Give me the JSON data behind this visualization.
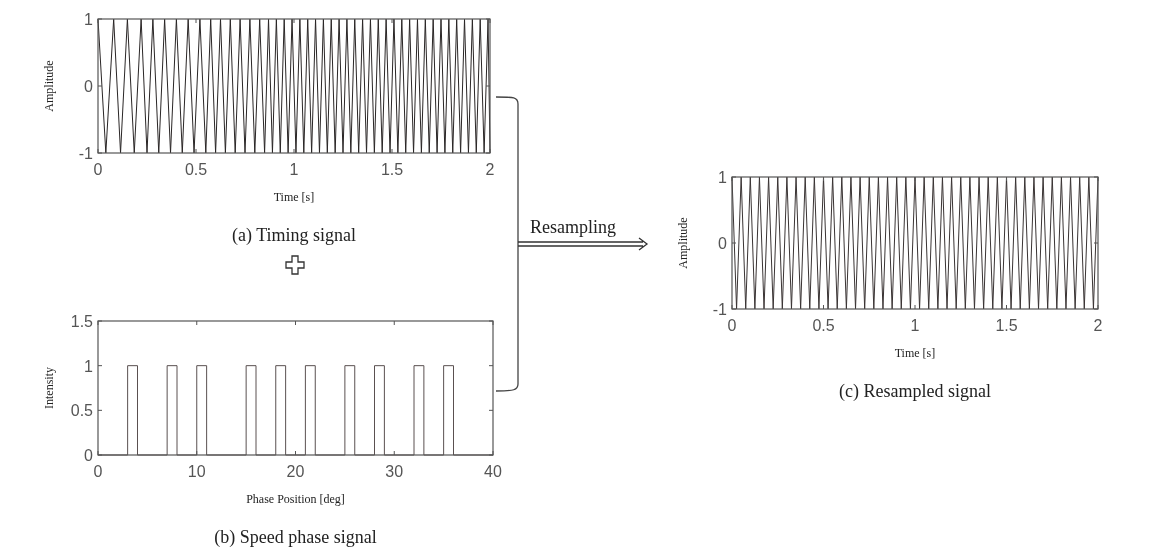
{
  "chart_data": [
    {
      "type": "line",
      "title": "(a) Timing signal",
      "xlabel": "Time [s]",
      "ylabel": "Amplitude",
      "xlim": [
        0,
        2
      ],
      "ylim": [
        -1,
        1
      ],
      "xticks": [
        0,
        0.5,
        1,
        1.5,
        2
      ],
      "yticks": [
        -1,
        0,
        1
      ],
      "grid": false,
      "series": [
        {
          "color": "#2a2626",
          "x": [
            0,
            0.04,
            0.08,
            0.115,
            0.15,
            0.185,
            0.22,
            0.25,
            0.28,
            0.31,
            0.34,
            0.37,
            0.4,
            0.43,
            0.46,
            0.49,
            0.52,
            0.55,
            0.575,
            0.6,
            0.625,
            0.65,
            0.675,
            0.7,
            0.725,
            0.75,
            0.775,
            0.8,
            0.825,
            0.85,
            0.87,
            0.89,
            0.91,
            0.93,
            0.95,
            0.97,
            0.99,
            1.01,
            1.03,
            1.05,
            1.07,
            1.09,
            1.11,
            1.13,
            1.15,
            1.17,
            1.19,
            1.21,
            1.23,
            1.25,
            1.27,
            1.29,
            1.31,
            1.33,
            1.35,
            1.37,
            1.39,
            1.41,
            1.43,
            1.45,
            1.47,
            1.49,
            1.51,
            1.53,
            1.55,
            1.57,
            1.59,
            1.61,
            1.63,
            1.65,
            1.67,
            1.69,
            1.71,
            1.73,
            1.75,
            1.77,
            1.79,
            1.81,
            1.83,
            1.85,
            1.87,
            1.89,
            1.91,
            1.93,
            1.95,
            1.97,
            1.99,
            2
          ],
          "values": [
            1,
            -1,
            1,
            -1,
            1,
            -1,
            1,
            -1,
            1,
            -1,
            1,
            -1,
            1,
            -1,
            1,
            -1,
            1,
            -1,
            1,
            -1,
            1,
            -1,
            1,
            -1,
            1,
            -1,
            1,
            -1,
            1,
            -1,
            1,
            -1,
            1,
            -1,
            1,
            -1,
            1,
            -1,
            1,
            -1,
            1,
            -1,
            1,
            -1,
            1,
            -1,
            1,
            -1,
            1,
            -1,
            1,
            -1,
            1,
            -1,
            1,
            -1,
            1,
            -1,
            1,
            -1,
            1,
            -1,
            1,
            -1,
            1,
            -1,
            1,
            -1,
            1,
            -1,
            1,
            -1,
            1,
            -1,
            1,
            -1,
            1,
            -1,
            1,
            -1,
            1,
            -1,
            1,
            -1,
            1,
            -1,
            1,
            -1
          ]
        }
      ]
    },
    {
      "type": "line",
      "title": "(b) Speed phase signal",
      "xlabel": "Phase Position [deg]",
      "ylabel": "Intensity",
      "xlim": [
        0,
        40
      ],
      "ylim": [
        0,
        1.5
      ],
      "xticks": [
        0,
        10,
        20,
        30,
        40
      ],
      "yticks": [
        0,
        0.5,
        1,
        1.5
      ],
      "grid": false,
      "series": [
        {
          "color": "#5a5050",
          "x": [
            0,
            3,
            3,
            4,
            4,
            7,
            7,
            8,
            8,
            10,
            10,
            11,
            11,
            15,
            15,
            16,
            16,
            18,
            18,
            19,
            19,
            21,
            21,
            22,
            22,
            25,
            25,
            26,
            26,
            28,
            28,
            29,
            29,
            32,
            32,
            33,
            33,
            35,
            35,
            36,
            36,
            40
          ],
          "values": [
            0,
            0,
            1,
            1,
            0,
            0,
            1,
            1,
            0,
            0,
            1,
            1,
            0,
            0,
            1,
            1,
            0,
            0,
            1,
            1,
            0,
            0,
            1,
            1,
            0,
            0,
            1,
            1,
            0,
            0,
            1,
            1,
            0,
            0,
            1,
            1,
            0,
            0,
            1,
            1,
            0,
            0
          ]
        }
      ]
    },
    {
      "type": "line",
      "title": "(c) Resampled signal",
      "xlabel": "Time [s]",
      "ylabel": "Amplitude",
      "xlim": [
        0,
        2
      ],
      "ylim": [
        -1,
        1
      ],
      "xticks": [
        0,
        0.5,
        1,
        1.5,
        2
      ],
      "yticks": [
        -1,
        0,
        1
      ],
      "grid": false,
      "annotations": [
        "Resampling"
      ],
      "series": [
        {
          "color": "#3a3434",
          "x": [
            0,
            0.025,
            0.05,
            0.075,
            0.1,
            0.125,
            0.15,
            0.175,
            0.2,
            0.225,
            0.25,
            0.275,
            0.3,
            0.325,
            0.35,
            0.375,
            0.4,
            0.425,
            0.45,
            0.475,
            0.5,
            0.525,
            0.55,
            0.575,
            0.6,
            0.625,
            0.65,
            0.675,
            0.7,
            0.725,
            0.75,
            0.775,
            0.8,
            0.825,
            0.85,
            0.875,
            0.9,
            0.925,
            0.95,
            0.975,
            1,
            1.025,
            1.05,
            1.075,
            1.1,
            1.125,
            1.15,
            1.175,
            1.2,
            1.225,
            1.25,
            1.275,
            1.3,
            1.325,
            1.35,
            1.375,
            1.4,
            1.425,
            1.45,
            1.475,
            1.5,
            1.525,
            1.55,
            1.575,
            1.6,
            1.625,
            1.65,
            1.675,
            1.7,
            1.725,
            1.75,
            1.775,
            1.8,
            1.825,
            1.85,
            1.875,
            1.9,
            1.925,
            1.95,
            1.975,
            2
          ],
          "values": [
            1,
            -1,
            1,
            -1,
            1,
            -1,
            1,
            -1,
            1,
            -1,
            1,
            -1,
            1,
            -1,
            1,
            -1,
            1,
            -1,
            1,
            -1,
            1,
            -1,
            1,
            -1,
            1,
            -1,
            1,
            -1,
            1,
            -1,
            1,
            -1,
            1,
            -1,
            1,
            -1,
            1,
            -1,
            1,
            -1,
            1,
            -1,
            1,
            -1,
            1,
            -1,
            1,
            -1,
            1,
            -1,
            1,
            -1,
            1,
            -1,
            1,
            -1,
            1,
            -1,
            1,
            -1,
            1,
            -1,
            1,
            -1,
            1,
            -1,
            1,
            -1,
            1,
            -1,
            1,
            -1,
            1,
            -1,
            1,
            -1,
            1,
            -1,
            1,
            -1,
            1
          ]
        }
      ]
    }
  ]
}
